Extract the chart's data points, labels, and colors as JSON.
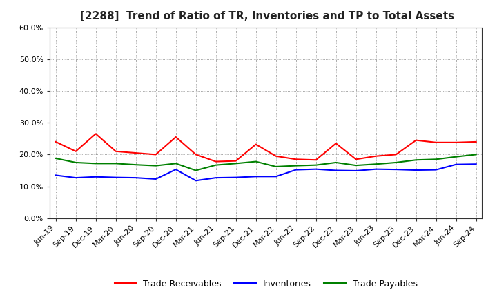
{
  "title": "[2288]  Trend of Ratio of TR, Inventories and TP to Total Assets",
  "labels": [
    "Jun-19",
    "Sep-19",
    "Dec-19",
    "Mar-20",
    "Jun-20",
    "Sep-20",
    "Dec-20",
    "Mar-21",
    "Jun-21",
    "Sep-21",
    "Dec-21",
    "Mar-22",
    "Jun-22",
    "Sep-22",
    "Dec-22",
    "Mar-23",
    "Jun-23",
    "Sep-23",
    "Dec-23",
    "Mar-24",
    "Jun-24",
    "Sep-24"
  ],
  "trade_receivables": [
    0.24,
    0.21,
    0.265,
    0.21,
    0.205,
    0.2,
    0.255,
    0.2,
    0.178,
    0.18,
    0.232,
    0.195,
    0.185,
    0.183,
    0.235,
    0.185,
    0.195,
    0.2,
    0.245,
    0.238,
    0.238,
    0.24
  ],
  "inventories": [
    0.135,
    0.127,
    0.13,
    0.128,
    0.127,
    0.123,
    0.153,
    0.118,
    0.127,
    0.128,
    0.131,
    0.131,
    0.152,
    0.154,
    0.15,
    0.149,
    0.154,
    0.153,
    0.151,
    0.152,
    0.169,
    0.17
  ],
  "trade_payables": [
    0.188,
    0.175,
    0.172,
    0.172,
    0.168,
    0.165,
    0.172,
    0.15,
    0.167,
    0.172,
    0.178,
    0.162,
    0.165,
    0.167,
    0.175,
    0.166,
    0.17,
    0.175,
    0.183,
    0.185,
    0.193,
    0.2
  ],
  "tr_color": "#FF0000",
  "inv_color": "#0000FF",
  "tp_color": "#008000",
  "ylim": [
    0.0,
    0.6
  ],
  "yticks": [
    0.0,
    0.1,
    0.2,
    0.3,
    0.4,
    0.5,
    0.6
  ],
  "background_color": "#FFFFFF",
  "grid_color": "#888888",
  "legend_labels": [
    "Trade Receivables",
    "Inventories",
    "Trade Payables"
  ],
  "title_fontsize": 11,
  "tick_fontsize": 8,
  "legend_fontsize": 9
}
